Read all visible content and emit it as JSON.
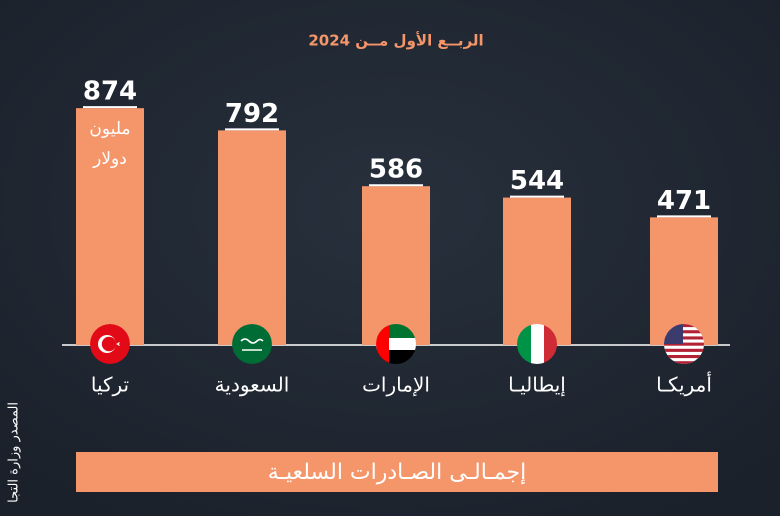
{
  "chart_data": {
    "type": "bar",
    "subtitle": "الربــع الأول مــن 2024",
    "categories": [
      "تركيا",
      "السعودية",
      "الإمارات",
      "إيطاليـا",
      "أمريكـا"
    ],
    "values": [
      874,
      792,
      586,
      544,
      471
    ],
    "color": "#f4956a",
    "unit": [
      "مليون",
      "دولار"
    ],
    "banner": "إجمـالـى الصـادرات السلعيـة",
    "source": "المصدر وزارة التجا"
  }
}
